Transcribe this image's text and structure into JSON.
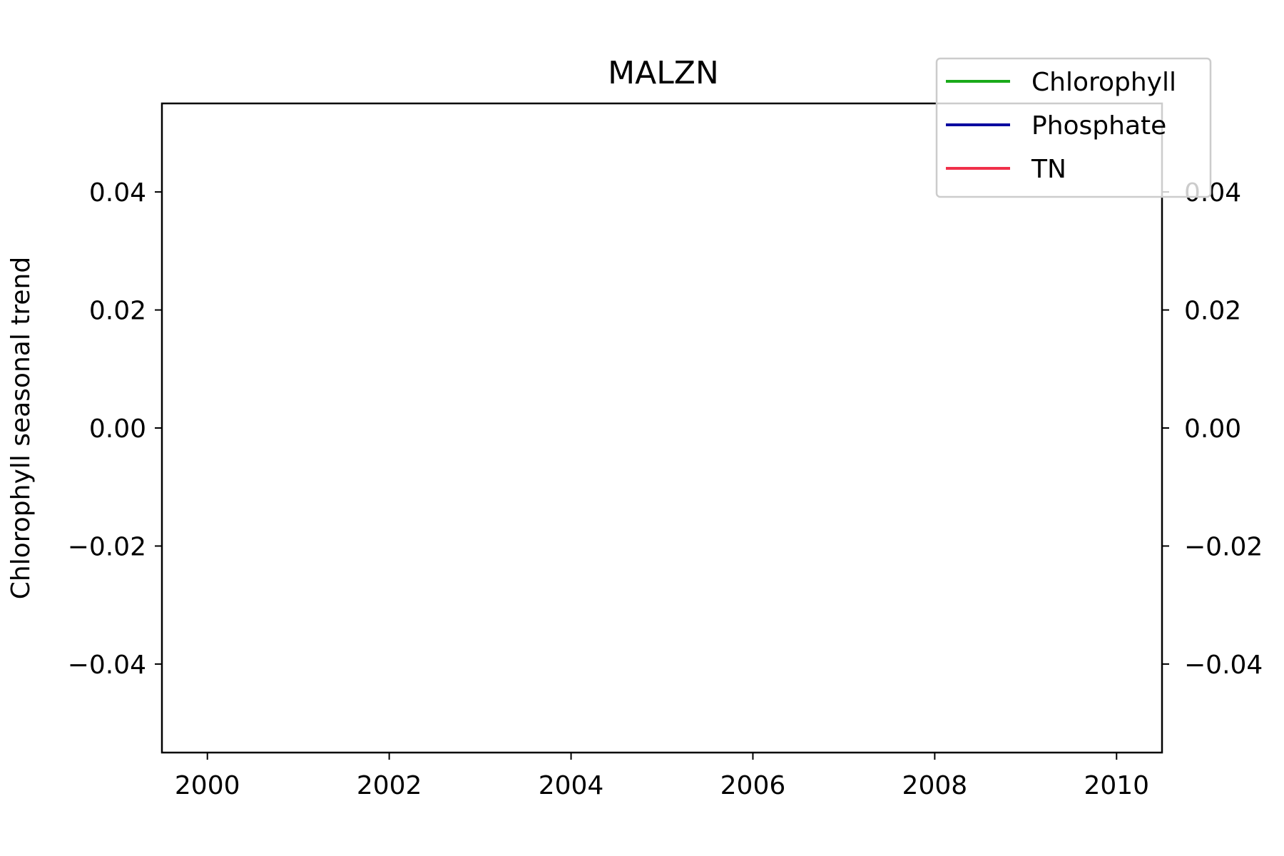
{
  "chart_data": {
    "type": "line",
    "title": "MALZN",
    "xlabel": "",
    "ylabel": "Chlorophyll seasonal trend",
    "xlim": [
      1999.5,
      2010.5
    ],
    "ylim": [
      -0.055,
      0.055
    ],
    "right_ylim": [
      -0.055,
      0.055
    ],
    "x_ticks": [
      2000,
      2002,
      2004,
      2006,
      2008,
      2010
    ],
    "x_tick_labels": [
      "2000",
      "2002",
      "2004",
      "2006",
      "2008",
      "2010"
    ],
    "y_ticks": [
      -0.04,
      -0.02,
      0.0,
      0.02,
      0.04
    ],
    "y_tick_labels": [
      "−0.04",
      "−0.02",
      "0.00",
      "0.02",
      "0.04"
    ],
    "right_y_tick_labels": [
      "−0.04",
      "−0.02",
      "0.00",
      "0.02",
      "0.04"
    ],
    "grid": false,
    "legend_position": "top-right",
    "series": [
      {
        "name": "Chlorophyll",
        "color": "#1aaa1a",
        "x": [],
        "y": []
      },
      {
        "name": "Phosphate",
        "color": "#0a0aa0",
        "x": [],
        "y": []
      },
      {
        "name": "TN",
        "color": "#f0304a",
        "x": [],
        "y": []
      }
    ]
  }
}
